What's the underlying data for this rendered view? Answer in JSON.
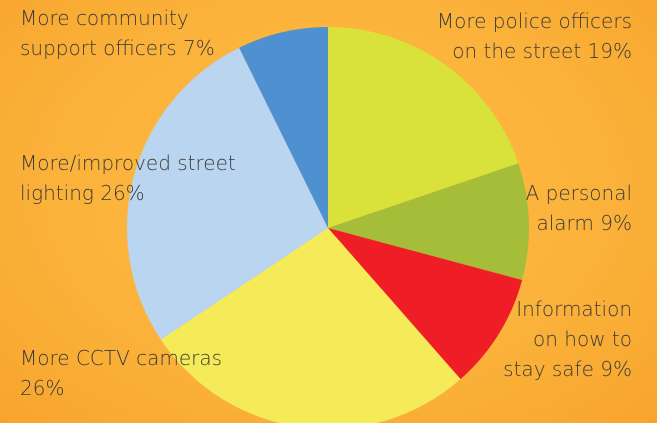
{
  "chart_data": {
    "type": "pie",
    "categories": [
      "More police officers on the street",
      "A personal alarm",
      "Information on how to stay safe",
      "More CCTV cameras",
      "More/improved street lighting",
      "More community support officers"
    ],
    "values": [
      19,
      9,
      9,
      26,
      26,
      7
    ],
    "value_labels": [
      "19%",
      "9%",
      "9%",
      "26%",
      "26%",
      "7%"
    ],
    "colors": [
      "#d8e23a",
      "#a6bd3a",
      "#ee1d26",
      "#f5eb58",
      "#b9d5ef",
      "#4e90d0"
    ]
  }
}
